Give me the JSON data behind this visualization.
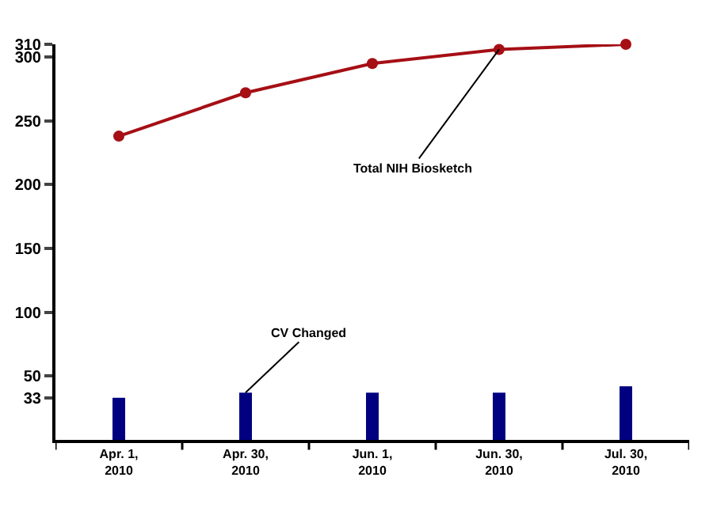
{
  "chart_data": {
    "type": "bar",
    "categories": [
      "Apr. 1, 2010",
      "Apr. 30, 2010",
      "Jun. 1, 2010",
      "Jun. 30, 2010",
      "Jul. 30, 2010"
    ],
    "series": [
      {
        "type": "line",
        "color": "#a50f15",
        "values": [
          238,
          272,
          295,
          306,
          310
        ]
      },
      {
        "color": "#000080",
        "values": [
          33,
          37,
          37,
          37,
          42
        ]
      }
    ],
    "annotations": [
      {
        "text": "Total NIH Biosketch",
        "x": "Jun. 30, 2010",
        "y": 306
      },
      {
        "text": "CV Changed",
        "x": "Apr. 30, 2010",
        "y": 37
      }
    ],
    "ylim": [
      0,
      310
    ],
    "yticks": [
      33,
      50,
      100,
      150,
      200,
      250,
      300,
      310
    ],
    "grid": false,
    "legend": false,
    "marker": "circle"
  }
}
